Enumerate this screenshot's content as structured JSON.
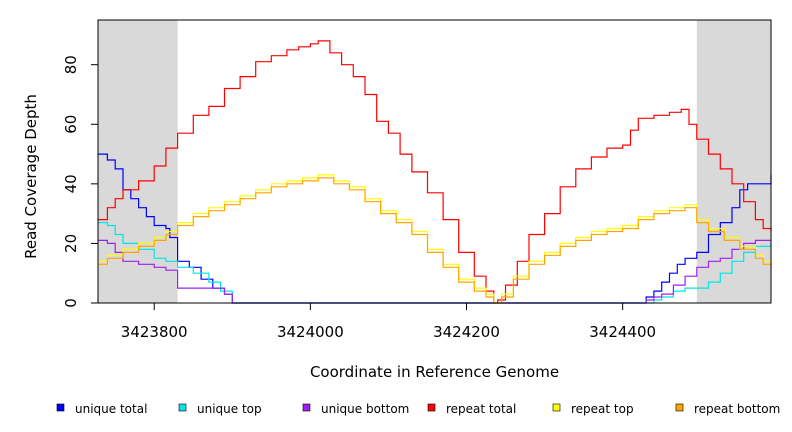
{
  "chart_data": {
    "type": "line",
    "xlabel": "Coordinate in Reference Genome",
    "ylabel": "Read Coverage Depth",
    "title": "",
    "xlim": [
      3423728,
      3424590
    ],
    "ylim": [
      0,
      95
    ],
    "x_ticks": [
      3423800,
      3424000,
      3424200,
      3424400
    ],
    "x_tick_labels": [
      "3423800",
      "3424000",
      "3424200",
      "3424400"
    ],
    "y_ticks": [
      0,
      20,
      40,
      60,
      80
    ],
    "y_tick_labels": [
      "0",
      "20",
      "40",
      "60",
      "80"
    ],
    "shaded_regions": [
      {
        "x0": 3423728,
        "x1": 3423830
      },
      {
        "x0": 3424495,
        "x1": 3424590
      }
    ],
    "series": [
      {
        "name": "unique total",
        "color": "#0000ff",
        "points": [
          [
            3423728,
            50
          ],
          [
            3423740,
            48
          ],
          [
            3423750,
            45
          ],
          [
            3423760,
            38
          ],
          [
            3423770,
            35
          ],
          [
            3423780,
            32
          ],
          [
            3423790,
            29
          ],
          [
            3423800,
            26
          ],
          [
            3423815,
            25
          ],
          [
            3423820,
            22
          ],
          [
            3423830,
            14
          ],
          [
            3423845,
            12
          ],
          [
            3423860,
            8
          ],
          [
            3423875,
            5
          ],
          [
            3423890,
            3
          ],
          [
            3423900,
            0
          ],
          [
            3424200,
            0
          ],
          [
            3424420,
            0
          ],
          [
            3424430,
            2
          ],
          [
            3424440,
            4
          ],
          [
            3424450,
            7
          ],
          [
            3424460,
            10
          ],
          [
            3424470,
            13
          ],
          [
            3424480,
            15
          ],
          [
            3424495,
            17
          ],
          [
            3424510,
            23
          ],
          [
            3424525,
            27
          ],
          [
            3424540,
            32
          ],
          [
            3424550,
            38
          ],
          [
            3424560,
            40
          ],
          [
            3424580,
            40
          ],
          [
            3424590,
            43
          ]
        ]
      },
      {
        "name": "unique top",
        "color": "#00e5e5",
        "points": [
          [
            3423728,
            27
          ],
          [
            3423740,
            26
          ],
          [
            3423750,
            23
          ],
          [
            3423760,
            20
          ],
          [
            3423780,
            18
          ],
          [
            3423800,
            15
          ],
          [
            3423815,
            14
          ],
          [
            3423830,
            12
          ],
          [
            3423850,
            10
          ],
          [
            3423870,
            7
          ],
          [
            3423885,
            4
          ],
          [
            3423900,
            0
          ],
          [
            3424430,
            0
          ],
          [
            3424440,
            1
          ],
          [
            3424450,
            2
          ],
          [
            3424465,
            4
          ],
          [
            3424480,
            5
          ],
          [
            3424495,
            5
          ],
          [
            3424510,
            7
          ],
          [
            3424525,
            10
          ],
          [
            3424540,
            14
          ],
          [
            3424555,
            17
          ],
          [
            3424570,
            19
          ],
          [
            3424590,
            20
          ]
        ]
      },
      {
        "name": "unique bottom",
        "color": "#a020f0",
        "points": [
          [
            3423728,
            21
          ],
          [
            3423740,
            20
          ],
          [
            3423750,
            17
          ],
          [
            3423760,
            14
          ],
          [
            3423780,
            13
          ],
          [
            3423800,
            12
          ],
          [
            3423815,
            11
          ],
          [
            3423830,
            5
          ],
          [
            3423860,
            5
          ],
          [
            3423880,
            5
          ],
          [
            3423890,
            3
          ],
          [
            3423900,
            0
          ],
          [
            3424420,
            0
          ],
          [
            3424430,
            1
          ],
          [
            3424440,
            2
          ],
          [
            3424450,
            3
          ],
          [
            3424465,
            6
          ],
          [
            3424480,
            9
          ],
          [
            3424495,
            12
          ],
          [
            3424510,
            14
          ],
          [
            3424525,
            15
          ],
          [
            3424540,
            18
          ],
          [
            3424555,
            20
          ],
          [
            3424570,
            21
          ],
          [
            3424590,
            21
          ]
        ]
      },
      {
        "name": "repeat total",
        "color": "#ff0000",
        "points": [
          [
            3423728,
            28
          ],
          [
            3423740,
            32
          ],
          [
            3423750,
            35
          ],
          [
            3423760,
            38
          ],
          [
            3423780,
            41
          ],
          [
            3423800,
            46
          ],
          [
            3423815,
            52
          ],
          [
            3423830,
            57
          ],
          [
            3423850,
            63
          ],
          [
            3423870,
            66
          ],
          [
            3423890,
            72
          ],
          [
            3423910,
            76
          ],
          [
            3423930,
            81
          ],
          [
            3423950,
            83
          ],
          [
            3423970,
            85
          ],
          [
            3423985,
            86
          ],
          [
            3424000,
            87
          ],
          [
            3424010,
            88
          ],
          [
            3424025,
            84
          ],
          [
            3424040,
            80
          ],
          [
            3424055,
            76
          ],
          [
            3424070,
            70
          ],
          [
            3424085,
            61
          ],
          [
            3424100,
            57
          ],
          [
            3424115,
            50
          ],
          [
            3424130,
            44
          ],
          [
            3424150,
            37
          ],
          [
            3424170,
            28
          ],
          [
            3424190,
            17
          ],
          [
            3424210,
            9
          ],
          [
            3424225,
            4
          ],
          [
            3424235,
            0
          ],
          [
            3424240,
            1
          ],
          [
            3424250,
            6
          ],
          [
            3424265,
            14
          ],
          [
            3424280,
            23
          ],
          [
            3424300,
            30
          ],
          [
            3424320,
            39
          ],
          [
            3424340,
            45
          ],
          [
            3424360,
            49
          ],
          [
            3424380,
            52
          ],
          [
            3424400,
            53
          ],
          [
            3424410,
            58
          ],
          [
            3424420,
            62
          ],
          [
            3424440,
            63
          ],
          [
            3424460,
            64
          ],
          [
            3424475,
            65
          ],
          [
            3424485,
            60
          ],
          [
            3424495,
            55
          ],
          [
            3424510,
            50
          ],
          [
            3424525,
            45
          ],
          [
            3424540,
            40
          ],
          [
            3424555,
            34
          ],
          [
            3424570,
            28
          ],
          [
            3424580,
            25
          ],
          [
            3424590,
            24
          ]
        ]
      },
      {
        "name": "repeat top",
        "color": "#ffff00",
        "points": [
          [
            3423728,
            14
          ],
          [
            3423740,
            16
          ],
          [
            3423760,
            18
          ],
          [
            3423780,
            20
          ],
          [
            3423800,
            22
          ],
          [
            3423815,
            24
          ],
          [
            3423830,
            27
          ],
          [
            3423850,
            30
          ],
          [
            3423870,
            32
          ],
          [
            3423890,
            34
          ],
          [
            3423910,
            36
          ],
          [
            3423930,
            38
          ],
          [
            3423950,
            40
          ],
          [
            3423970,
            41
          ],
          [
            3423990,
            42
          ],
          [
            3424010,
            43
          ],
          [
            3424030,
            41
          ],
          [
            3424050,
            39
          ],
          [
            3424070,
            35
          ],
          [
            3424090,
            31
          ],
          [
            3424110,
            28
          ],
          [
            3424130,
            24
          ],
          [
            3424150,
            18
          ],
          [
            3424170,
            13
          ],
          [
            3424190,
            8
          ],
          [
            3424210,
            5
          ],
          [
            3424225,
            3
          ],
          [
            3424235,
            0
          ],
          [
            3424245,
            3
          ],
          [
            3424260,
            9
          ],
          [
            3424280,
            14
          ],
          [
            3424300,
            17
          ],
          [
            3424320,
            20
          ],
          [
            3424340,
            22
          ],
          [
            3424360,
            24
          ],
          [
            3424380,
            25
          ],
          [
            3424400,
            26
          ],
          [
            3424420,
            29
          ],
          [
            3424440,
            31
          ],
          [
            3424460,
            32
          ],
          [
            3424480,
            33
          ],
          [
            3424495,
            28
          ],
          [
            3424510,
            25
          ],
          [
            3424530,
            22
          ],
          [
            3424550,
            19
          ],
          [
            3424570,
            16
          ],
          [
            3424580,
            14
          ],
          [
            3424590,
            13
          ]
        ]
      },
      {
        "name": "repeat bottom",
        "color": "#ffa500",
        "points": [
          [
            3423728,
            13
          ],
          [
            3423740,
            15
          ],
          [
            3423760,
            17
          ],
          [
            3423780,
            19
          ],
          [
            3423800,
            21
          ],
          [
            3423815,
            23
          ],
          [
            3423830,
            26
          ],
          [
            3423850,
            29
          ],
          [
            3423870,
            31
          ],
          [
            3423890,
            33
          ],
          [
            3423910,
            35
          ],
          [
            3423930,
            37
          ],
          [
            3423950,
            39
          ],
          [
            3423970,
            40
          ],
          [
            3423990,
            41
          ],
          [
            3424010,
            42
          ],
          [
            3424030,
            40
          ],
          [
            3424050,
            38
          ],
          [
            3424070,
            34
          ],
          [
            3424090,
            30
          ],
          [
            3424110,
            27
          ],
          [
            3424130,
            23
          ],
          [
            3424150,
            17
          ],
          [
            3424170,
            12
          ],
          [
            3424190,
            7
          ],
          [
            3424210,
            4
          ],
          [
            3424225,
            2
          ],
          [
            3424235,
            0
          ],
          [
            3424245,
            2
          ],
          [
            3424260,
            8
          ],
          [
            3424280,
            13
          ],
          [
            3424300,
            16
          ],
          [
            3424320,
            19
          ],
          [
            3424340,
            21
          ],
          [
            3424360,
            23
          ],
          [
            3424380,
            24
          ],
          [
            3424400,
            25
          ],
          [
            3424420,
            28
          ],
          [
            3424440,
            30
          ],
          [
            3424460,
            31
          ],
          [
            3424480,
            32
          ],
          [
            3424495,
            27
          ],
          [
            3424510,
            24
          ],
          [
            3424530,
            21
          ],
          [
            3424550,
            18
          ],
          [
            3424570,
            15
          ],
          [
            3424580,
            13
          ],
          [
            3424590,
            12
          ]
        ]
      }
    ],
    "legend": {
      "placement": "bottom",
      "items": [
        {
          "label": "unique total",
          "color": "#0000ff"
        },
        {
          "label": "unique top",
          "color": "#00e5e5"
        },
        {
          "label": "unique bottom",
          "color": "#a020f0"
        },
        {
          "label": "repeat total",
          "color": "#ff0000"
        },
        {
          "label": "repeat top",
          "color": "#ffff00"
        },
        {
          "label": "repeat bottom",
          "color": "#ffa500"
        }
      ]
    }
  }
}
